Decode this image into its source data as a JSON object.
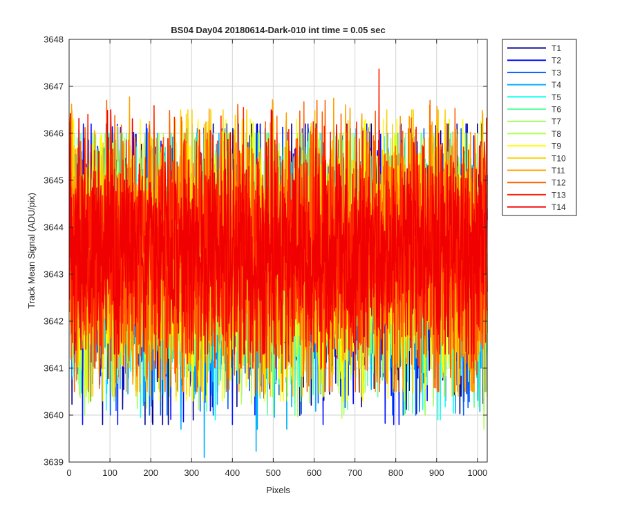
{
  "chart_data": {
    "type": "line",
    "title": "BS04 Day04 20180614-Dark-010 int time = 0.05 sec",
    "xlabel": "Pixels",
    "ylabel": "Track Mean Signal (ADU/pix)",
    "xlim": [
      0,
      1024
    ],
    "ylim": [
      3639,
      3648
    ],
    "x_ticks": [
      0,
      100,
      200,
      300,
      400,
      500,
      600,
      700,
      800,
      900,
      1000
    ],
    "y_ticks": [
      3639,
      3640,
      3641,
      3642,
      3643,
      3644,
      3645,
      3646,
      3647,
      3648
    ],
    "grid": true,
    "legend_position": "outside-top-right",
    "x_range": [
      1,
      1024
    ],
    "n_points": 1024,
    "series": [
      {
        "name": "T1",
        "color": "#00008f",
        "mean": 3643.2,
        "min": 3639.8,
        "max": 3646.2
      },
      {
        "name": "T2",
        "color": "#0010ff",
        "mean": 3643.2,
        "min": 3639.8,
        "max": 3646.2
      },
      {
        "name": "T3",
        "color": "#0060ff",
        "mean": 3643.2,
        "min": 3640.0,
        "max": 3646.1
      },
      {
        "name": "T4",
        "color": "#00b0ff",
        "mean": 3643.2,
        "min": 3639.1,
        "max": 3646.0
      },
      {
        "name": "T5",
        "color": "#10ffef",
        "mean": 3643.3,
        "min": 3639.9,
        "max": 3646.0
      },
      {
        "name": "T6",
        "color": "#60ff9f",
        "mean": 3643.3,
        "min": 3640.0,
        "max": 3646.0
      },
      {
        "name": "T7",
        "color": "#9fff60",
        "mean": 3643.3,
        "min": 3640.0,
        "max": 3646.0
      },
      {
        "name": "T8",
        "color": "#afff50",
        "mean": 3643.3,
        "min": 3639.7,
        "max": 3646.0
      },
      {
        "name": "T9",
        "color": "#ffff00",
        "mean": 3643.3,
        "min": 3640.3,
        "max": 3646.3
      },
      {
        "name": "T10",
        "color": "#ffcf00",
        "mean": 3643.4,
        "min": 3640.4,
        "max": 3646.5
      },
      {
        "name": "T11",
        "color": "#ffa000",
        "mean": 3643.4,
        "min": 3640.5,
        "max": 3646.9
      },
      {
        "name": "T12",
        "color": "#ff6000",
        "mean": 3643.4,
        "min": 3640.5,
        "max": 3646.7
      },
      {
        "name": "T13",
        "color": "#ff2000",
        "mean": 3643.5,
        "min": 3641.0,
        "max": 3647.7
      },
      {
        "name": "T14",
        "color": "#f00000",
        "mean": 3643.5,
        "min": 3641.3,
        "max": 3646.5
      }
    ]
  }
}
